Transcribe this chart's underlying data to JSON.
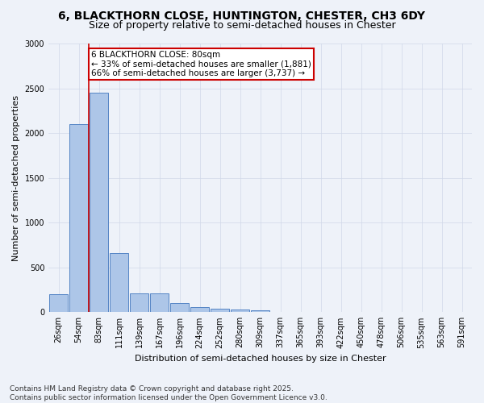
{
  "title_line1": "6, BLACKTHORN CLOSE, HUNTINGTON, CHESTER, CH3 6DY",
  "title_line2": "Size of property relative to semi-detached houses in Chester",
  "xlabel": "Distribution of semi-detached houses by size in Chester",
  "ylabel": "Number of semi-detached properties",
  "categories": [
    "26sqm",
    "54sqm",
    "83sqm",
    "111sqm",
    "139sqm",
    "167sqm",
    "196sqm",
    "224sqm",
    "252sqm",
    "280sqm",
    "309sqm",
    "337sqm",
    "365sqm",
    "393sqm",
    "422sqm",
    "450sqm",
    "478sqm",
    "506sqm",
    "535sqm",
    "563sqm",
    "591sqm"
  ],
  "values": [
    200,
    2100,
    2450,
    660,
    210,
    210,
    100,
    55,
    40,
    30,
    20,
    3,
    1,
    0,
    0,
    0,
    0,
    0,
    0,
    0,
    0
  ],
  "bar_color": "#adc6e8",
  "bar_edge_color": "#5585c5",
  "red_line_color": "#cc0000",
  "red_line_bar_index": 2,
  "annotation_text_line1": "6 BLACKTHORN CLOSE: 80sqm",
  "annotation_text_line2": "← 33% of semi-detached houses are smaller (1,881)",
  "annotation_text_line3": "66% of semi-detached houses are larger (3,737) →",
  "annotation_box_facecolor": "#ffffff",
  "annotation_box_edgecolor": "#cc0000",
  "ylim": [
    0,
    3000
  ],
  "yticks": [
    0,
    500,
    1000,
    1500,
    2000,
    2500,
    3000
  ],
  "background_color": "#eef2f9",
  "grid_color": "#d0d8e8",
  "title_fontsize": 10,
  "subtitle_fontsize": 9,
  "axis_label_fontsize": 8,
  "tick_fontsize": 7,
  "annotation_fontsize": 7.5,
  "footnote_fontsize": 6.5,
  "footnote_line1": "Contains HM Land Registry data © Crown copyright and database right 2025.",
  "footnote_line2": "Contains public sector information licensed under the Open Government Licence v3.0."
}
